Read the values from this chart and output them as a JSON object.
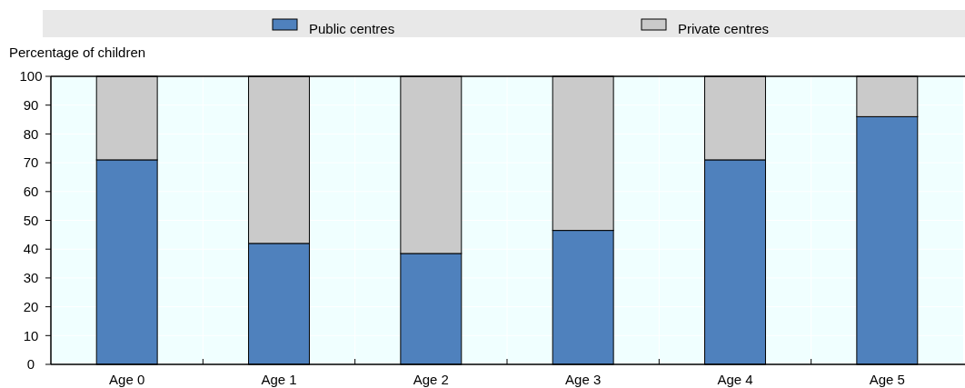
{
  "chart_data": {
    "type": "bar",
    "ylabel": "Percentage of children",
    "stacked": true,
    "categories": [
      "Age 0",
      "Age 1",
      "Age 2",
      "Age 3",
      "Age 4",
      "Age 5"
    ],
    "series": [
      {
        "name": "Public centres",
        "color": "#4f81bd",
        "values": [
          71,
          42,
          38.5,
          46.5,
          71,
          86
        ]
      },
      {
        "name": "Private centres",
        "color": "#cacaca",
        "values": [
          29,
          58,
          61.5,
          53.5,
          29,
          14
        ]
      }
    ],
    "ylim": [
      0,
      100
    ],
    "yticks": [
      0,
      10,
      20,
      30,
      40,
      50,
      60,
      70,
      80,
      90,
      100
    ],
    "grid": true,
    "legend": "top"
  }
}
